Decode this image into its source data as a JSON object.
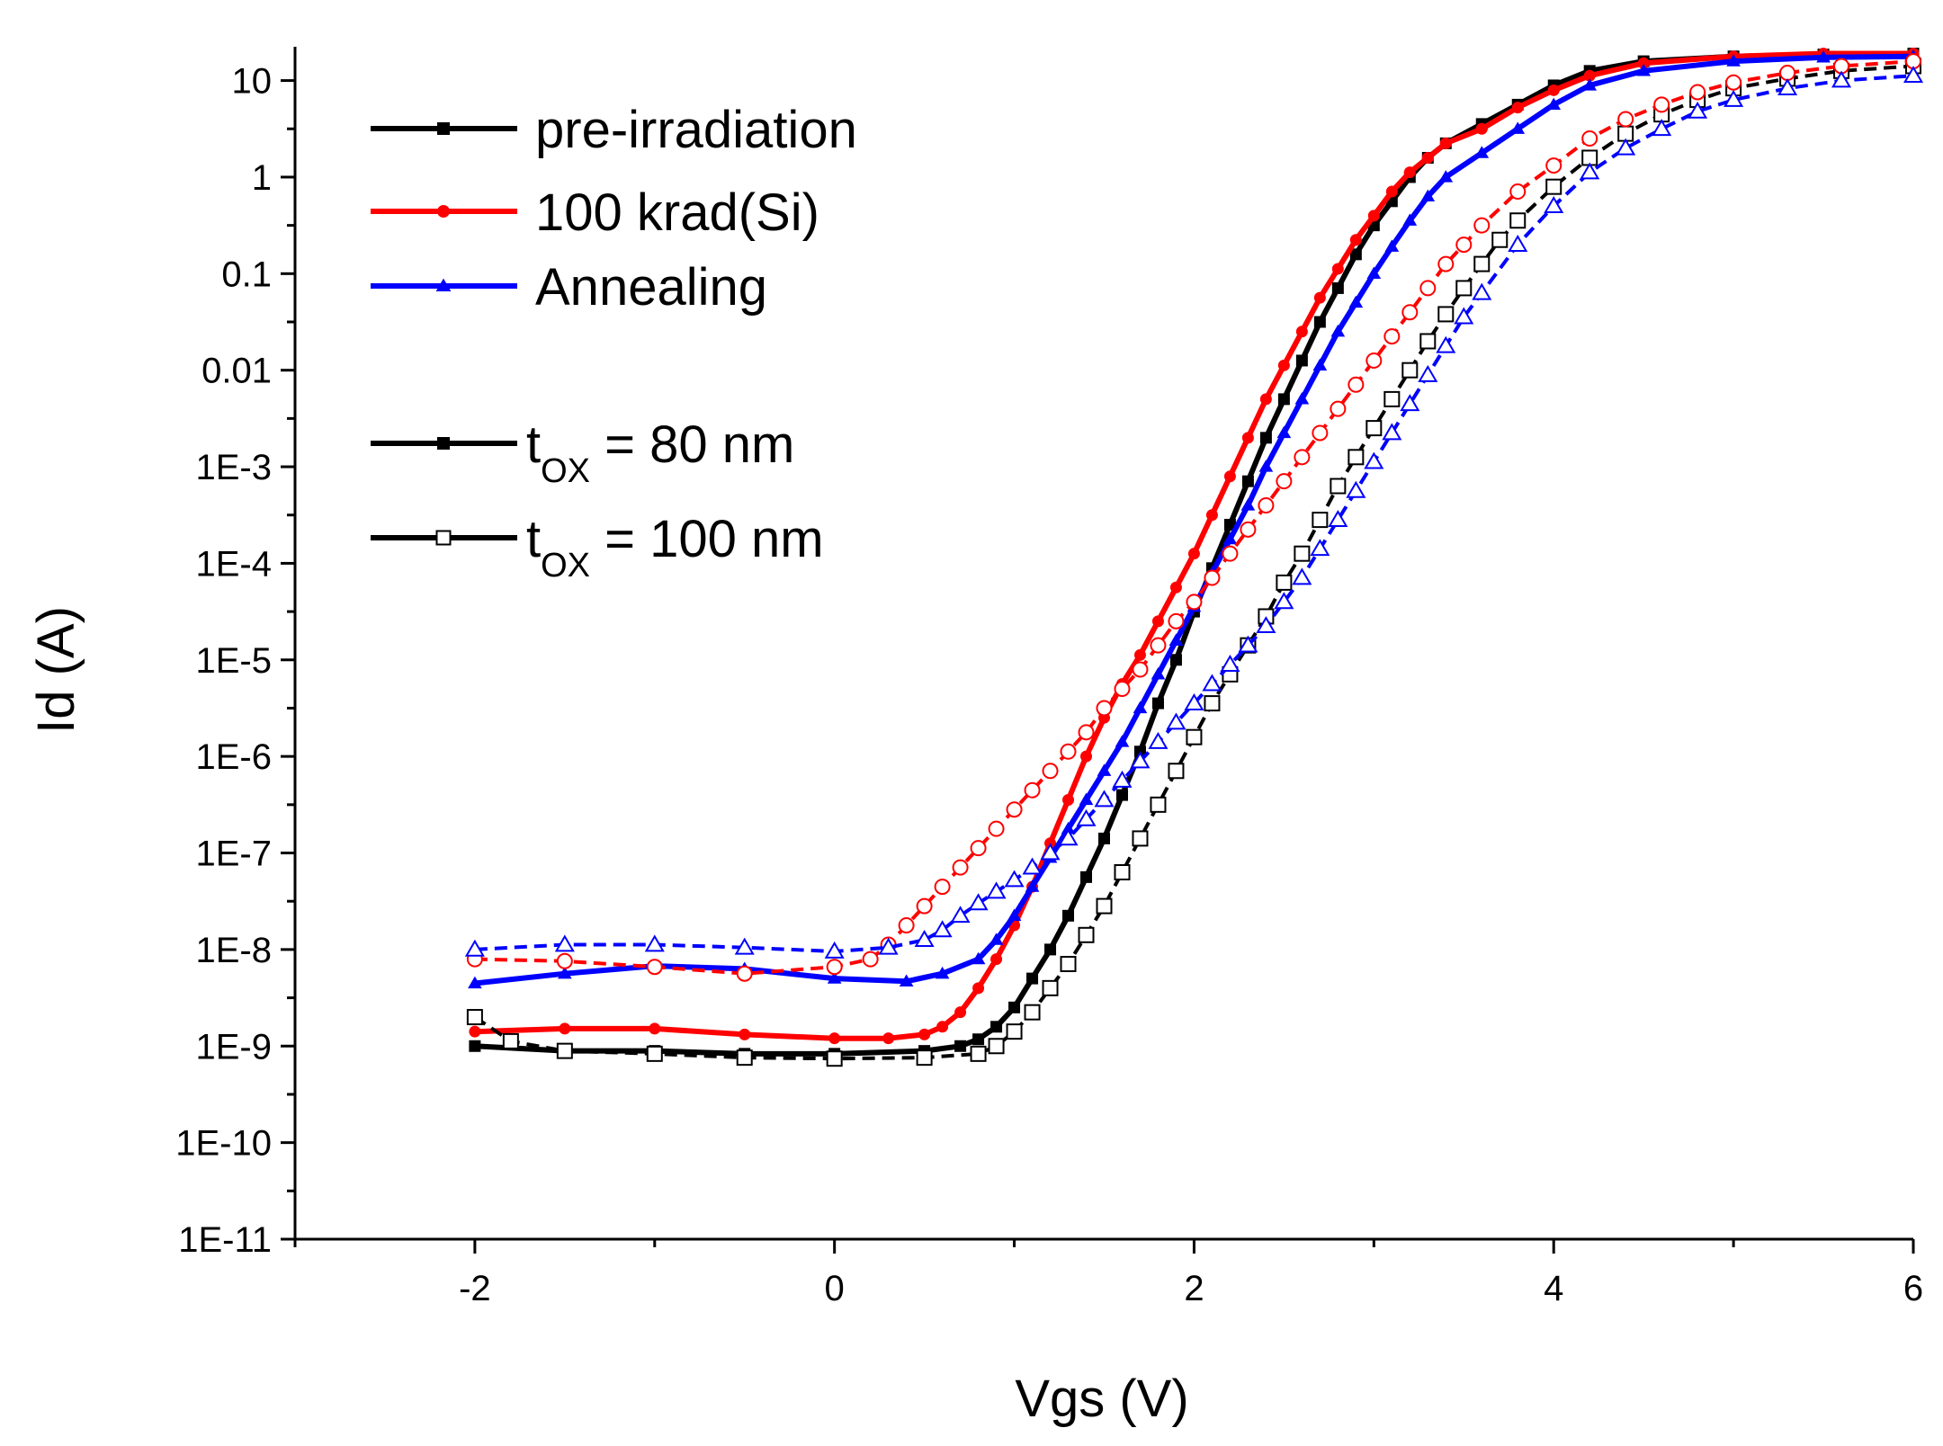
{
  "chart_data": {
    "type": "line",
    "title": "",
    "xlabel": "Vgs (V)",
    "ylabel": "Id (A)",
    "xlim": [
      -3,
      6
    ],
    "ylim_log10": [
      -11,
      1.35
    ],
    "y_scale": "log",
    "x_ticks": [
      {
        "value": -2,
        "label": "-2"
      },
      {
        "value": 0,
        "label": "0"
      },
      {
        "value": 2,
        "label": "2"
      },
      {
        "value": 4,
        "label": "4"
      },
      {
        "value": 6,
        "label": "6"
      }
    ],
    "y_ticks": [
      {
        "exp": 1,
        "label": "10"
      },
      {
        "exp": 0,
        "label": "1"
      },
      {
        "exp": -1,
        "label": "0.1"
      },
      {
        "exp": -2,
        "label": "0.01"
      },
      {
        "exp": -3,
        "label": "1E-3"
      },
      {
        "exp": -4,
        "label": "1E-4"
      },
      {
        "exp": -5,
        "label": "1E-5"
      },
      {
        "exp": -6,
        "label": "1E-6"
      },
      {
        "exp": -7,
        "label": "1E-7"
      },
      {
        "exp": -8,
        "label": "1E-8"
      },
      {
        "exp": -9,
        "label": "1E-9"
      },
      {
        "exp": -10,
        "label": "1E-10"
      },
      {
        "exp": -11,
        "label": "1E-11"
      }
    ],
    "legend": {
      "position": "top-left",
      "entries": [
        {
          "label": "pre-irradiation",
          "color": "#000000",
          "marker": "square",
          "filled": true
        },
        {
          "label": "100 krad(Si)",
          "color": "#ff0000",
          "marker": "circle",
          "filled": true
        },
        {
          "label": "Annealing",
          "color": "#0000ff",
          "marker": "triangle",
          "filled": true
        },
        {
          "label_prefix": "t",
          "label_sub": "OX",
          "label_suffix": " = 80 nm",
          "color": "#000000",
          "marker": "square",
          "filled": true
        },
        {
          "label_prefix": "t",
          "label_sub": "OX",
          "label_suffix": " = 100 nm",
          "color": "#000000",
          "marker": "square",
          "filled": false
        }
      ]
    },
    "series": [
      {
        "name": "pre-irradiation, tox = 80 nm",
        "color": "#000000",
        "marker": "square",
        "filled": true,
        "dashed": false,
        "points": [
          [
            -2,
            -9.0
          ],
          [
            -1.5,
            -9.05
          ],
          [
            -1,
            -9.05
          ],
          [
            -0.5,
            -9.08
          ],
          [
            0,
            -9.08
          ],
          [
            0.5,
            -9.05
          ],
          [
            0.7,
            -9.0
          ],
          [
            0.8,
            -8.93
          ],
          [
            0.9,
            -8.8
          ],
          [
            1.0,
            -8.6
          ],
          [
            1.1,
            -8.3
          ],
          [
            1.2,
            -8.0
          ],
          [
            1.3,
            -7.65
          ],
          [
            1.4,
            -7.25
          ],
          [
            1.5,
            -6.85
          ],
          [
            1.6,
            -6.4
          ],
          [
            1.7,
            -5.95
          ],
          [
            1.8,
            -5.45
          ],
          [
            1.9,
            -5.0
          ],
          [
            2.0,
            -4.5
          ],
          [
            2.1,
            -4.05
          ],
          [
            2.2,
            -3.6
          ],
          [
            2.3,
            -3.15
          ],
          [
            2.4,
            -2.7
          ],
          [
            2.5,
            -2.3
          ],
          [
            2.6,
            -1.9
          ],
          [
            2.7,
            -1.5
          ],
          [
            2.8,
            -1.15
          ],
          [
            2.9,
            -0.8
          ],
          [
            3.0,
            -0.5
          ],
          [
            3.1,
            -0.25
          ],
          [
            3.2,
            0.0
          ],
          [
            3.3,
            0.2
          ],
          [
            3.4,
            0.35
          ],
          [
            3.6,
            0.55
          ],
          [
            3.8,
            0.75
          ],
          [
            4.0,
            0.95
          ],
          [
            4.2,
            1.1
          ],
          [
            4.5,
            1.2
          ],
          [
            5.0,
            1.25
          ],
          [
            5.5,
            1.27
          ],
          [
            6.0,
            1.28
          ]
        ]
      },
      {
        "name": "100 krad(Si), tox = 80 nm",
        "color": "#ff0000",
        "marker": "circle",
        "filled": true,
        "dashed": false,
        "points": [
          [
            -2,
            -8.85
          ],
          [
            -1.5,
            -8.82
          ],
          [
            -1,
            -8.82
          ],
          [
            -0.5,
            -8.88
          ],
          [
            0,
            -8.92
          ],
          [
            0.3,
            -8.92
          ],
          [
            0.5,
            -8.88
          ],
          [
            0.6,
            -8.8
          ],
          [
            0.7,
            -8.65
          ],
          [
            0.8,
            -8.4
          ],
          [
            0.9,
            -8.1
          ],
          [
            1.0,
            -7.75
          ],
          [
            1.1,
            -7.35
          ],
          [
            1.2,
            -6.9
          ],
          [
            1.3,
            -6.45
          ],
          [
            1.4,
            -6.0
          ],
          [
            1.5,
            -5.6
          ],
          [
            1.6,
            -5.25
          ],
          [
            1.7,
            -4.95
          ],
          [
            1.8,
            -4.6
          ],
          [
            1.9,
            -4.25
          ],
          [
            2.0,
            -3.9
          ],
          [
            2.1,
            -3.5
          ],
          [
            2.2,
            -3.1
          ],
          [
            2.3,
            -2.7
          ],
          [
            2.4,
            -2.3
          ],
          [
            2.5,
            -1.95
          ],
          [
            2.6,
            -1.6
          ],
          [
            2.7,
            -1.25
          ],
          [
            2.8,
            -0.95
          ],
          [
            2.9,
            -0.65
          ],
          [
            3.0,
            -0.4
          ],
          [
            3.1,
            -0.15
          ],
          [
            3.2,
            0.05
          ],
          [
            3.3,
            0.2
          ],
          [
            3.4,
            0.35
          ],
          [
            3.6,
            0.5
          ],
          [
            3.8,
            0.72
          ],
          [
            4.0,
            0.9
          ],
          [
            4.2,
            1.05
          ],
          [
            4.5,
            1.18
          ],
          [
            5.0,
            1.25
          ],
          [
            5.5,
            1.28
          ],
          [
            6.0,
            1.28
          ]
        ]
      },
      {
        "name": "Annealing, tox = 80 nm",
        "color": "#0000ff",
        "marker": "triangle",
        "filled": true,
        "dashed": false,
        "points": [
          [
            -2,
            -8.35
          ],
          [
            -1.5,
            -8.25
          ],
          [
            -1,
            -8.17
          ],
          [
            -0.5,
            -8.2
          ],
          [
            0,
            -8.3
          ],
          [
            0.4,
            -8.33
          ],
          [
            0.6,
            -8.25
          ],
          [
            0.8,
            -8.1
          ],
          [
            0.9,
            -7.9
          ],
          [
            1.0,
            -7.65
          ],
          [
            1.1,
            -7.35
          ],
          [
            1.2,
            -7.05
          ],
          [
            1.3,
            -6.75
          ],
          [
            1.4,
            -6.45
          ],
          [
            1.5,
            -6.15
          ],
          [
            1.6,
            -5.85
          ],
          [
            1.7,
            -5.5
          ],
          [
            1.8,
            -5.15
          ],
          [
            1.9,
            -4.8
          ],
          [
            2.0,
            -4.45
          ],
          [
            2.1,
            -4.1
          ],
          [
            2.2,
            -3.75
          ],
          [
            2.3,
            -3.4
          ],
          [
            2.4,
            -3.0
          ],
          [
            2.5,
            -2.65
          ],
          [
            2.6,
            -2.3
          ],
          [
            2.7,
            -1.95
          ],
          [
            2.8,
            -1.6
          ],
          [
            2.9,
            -1.3
          ],
          [
            3.0,
            -1.0
          ],
          [
            3.1,
            -0.72
          ],
          [
            3.2,
            -0.45
          ],
          [
            3.3,
            -0.2
          ],
          [
            3.4,
            0.0
          ],
          [
            3.6,
            0.25
          ],
          [
            3.8,
            0.5
          ],
          [
            4.0,
            0.75
          ],
          [
            4.2,
            0.95
          ],
          [
            4.5,
            1.1
          ],
          [
            5.0,
            1.2
          ],
          [
            5.5,
            1.24
          ],
          [
            6.0,
            1.25
          ]
        ]
      },
      {
        "name": "pre-irradiation, tox = 100 nm",
        "color": "#000000",
        "marker": "square",
        "filled": false,
        "dashed": true,
        "points": [
          [
            -2,
            -8.7
          ],
          [
            -1.8,
            -8.95
          ],
          [
            -1.5,
            -9.05
          ],
          [
            -1,
            -9.08
          ],
          [
            -0.5,
            -9.12
          ],
          [
            0,
            -9.13
          ],
          [
            0.5,
            -9.12
          ],
          [
            0.8,
            -9.08
          ],
          [
            0.9,
            -9.0
          ],
          [
            1.0,
            -8.85
          ],
          [
            1.1,
            -8.65
          ],
          [
            1.2,
            -8.4
          ],
          [
            1.3,
            -8.15
          ],
          [
            1.4,
            -7.85
          ],
          [
            1.5,
            -7.55
          ],
          [
            1.6,
            -7.2
          ],
          [
            1.7,
            -6.85
          ],
          [
            1.8,
            -6.5
          ],
          [
            1.9,
            -6.15
          ],
          [
            2.0,
            -5.8
          ],
          [
            2.1,
            -5.45
          ],
          [
            2.2,
            -5.15
          ],
          [
            2.3,
            -4.85
          ],
          [
            2.4,
            -4.55
          ],
          [
            2.5,
            -4.2
          ],
          [
            2.6,
            -3.9
          ],
          [
            2.7,
            -3.55
          ],
          [
            2.8,
            -3.2
          ],
          [
            2.9,
            -2.9
          ],
          [
            3.0,
            -2.6
          ],
          [
            3.1,
            -2.3
          ],
          [
            3.2,
            -2.0
          ],
          [
            3.3,
            -1.7
          ],
          [
            3.4,
            -1.42
          ],
          [
            3.5,
            -1.15
          ],
          [
            3.6,
            -0.9
          ],
          [
            3.7,
            -0.65
          ],
          [
            3.8,
            -0.45
          ],
          [
            4.0,
            -0.1
          ],
          [
            4.2,
            0.2
          ],
          [
            4.4,
            0.45
          ],
          [
            4.6,
            0.65
          ],
          [
            4.8,
            0.8
          ],
          [
            5.0,
            0.92
          ],
          [
            5.3,
            1.02
          ],
          [
            5.6,
            1.1
          ],
          [
            6.0,
            1.15
          ]
        ]
      },
      {
        "name": "100 krad(Si), tox = 100 nm",
        "color": "#ff0000",
        "marker": "circle",
        "filled": false,
        "dashed": true,
        "points": [
          [
            -2,
            -8.1
          ],
          [
            -1.5,
            -8.12
          ],
          [
            -1,
            -8.18
          ],
          [
            -0.5,
            -8.25
          ],
          [
            0,
            -8.18
          ],
          [
            0.2,
            -8.1
          ],
          [
            0.3,
            -7.95
          ],
          [
            0.4,
            -7.75
          ],
          [
            0.5,
            -7.55
          ],
          [
            0.6,
            -7.35
          ],
          [
            0.7,
            -7.15
          ],
          [
            0.8,
            -6.95
          ],
          [
            0.9,
            -6.75
          ],
          [
            1.0,
            -6.55
          ],
          [
            1.1,
            -6.35
          ],
          [
            1.2,
            -6.15
          ],
          [
            1.3,
            -5.95
          ],
          [
            1.4,
            -5.75
          ],
          [
            1.5,
            -5.5
          ],
          [
            1.6,
            -5.3
          ],
          [
            1.7,
            -5.1
          ],
          [
            1.8,
            -4.85
          ],
          [
            1.9,
            -4.6
          ],
          [
            2.0,
            -4.4
          ],
          [
            2.1,
            -4.15
          ],
          [
            2.2,
            -3.9
          ],
          [
            2.3,
            -3.65
          ],
          [
            2.4,
            -3.4
          ],
          [
            2.5,
            -3.15
          ],
          [
            2.6,
            -2.9
          ],
          [
            2.7,
            -2.65
          ],
          [
            2.8,
            -2.4
          ],
          [
            2.9,
            -2.15
          ],
          [
            3.0,
            -1.9
          ],
          [
            3.1,
            -1.65
          ],
          [
            3.2,
            -1.4
          ],
          [
            3.3,
            -1.15
          ],
          [
            3.4,
            -0.9
          ],
          [
            3.5,
            -0.7
          ],
          [
            3.6,
            -0.5
          ],
          [
            3.8,
            -0.15
          ],
          [
            4.0,
            0.12
          ],
          [
            4.2,
            0.4
          ],
          [
            4.4,
            0.6
          ],
          [
            4.6,
            0.75
          ],
          [
            4.8,
            0.88
          ],
          [
            5.0,
            0.98
          ],
          [
            5.3,
            1.08
          ],
          [
            5.6,
            1.15
          ],
          [
            6.0,
            1.2
          ]
        ]
      },
      {
        "name": "Annealing, tox = 100 nm",
        "color": "#0000ff",
        "marker": "triangle",
        "filled": false,
        "dashed": true,
        "points": [
          [
            -2,
            -8.0
          ],
          [
            -1.5,
            -7.95
          ],
          [
            -1,
            -7.95
          ],
          [
            -0.5,
            -7.98
          ],
          [
            0,
            -8.02
          ],
          [
            0.3,
            -7.98
          ],
          [
            0.5,
            -7.9
          ],
          [
            0.6,
            -7.8
          ],
          [
            0.7,
            -7.65
          ],
          [
            0.8,
            -7.52
          ],
          [
            0.9,
            -7.4
          ],
          [
            1.0,
            -7.28
          ],
          [
            1.1,
            -7.15
          ],
          [
            1.2,
            -7.0
          ],
          [
            1.3,
            -6.85
          ],
          [
            1.4,
            -6.65
          ],
          [
            1.5,
            -6.45
          ],
          [
            1.6,
            -6.25
          ],
          [
            1.7,
            -6.05
          ],
          [
            1.8,
            -5.85
          ],
          [
            1.9,
            -5.65
          ],
          [
            2.0,
            -5.45
          ],
          [
            2.1,
            -5.25
          ],
          [
            2.2,
            -5.05
          ],
          [
            2.3,
            -4.85
          ],
          [
            2.4,
            -4.65
          ],
          [
            2.5,
            -4.4
          ],
          [
            2.6,
            -4.15
          ],
          [
            2.7,
            -3.85
          ],
          [
            2.8,
            -3.55
          ],
          [
            2.9,
            -3.25
          ],
          [
            3.0,
            -2.95
          ],
          [
            3.1,
            -2.65
          ],
          [
            3.2,
            -2.35
          ],
          [
            3.3,
            -2.05
          ],
          [
            3.4,
            -1.75
          ],
          [
            3.5,
            -1.45
          ],
          [
            3.6,
            -1.2
          ],
          [
            3.8,
            -0.7
          ],
          [
            4.0,
            -0.3
          ],
          [
            4.2,
            0.05
          ],
          [
            4.4,
            0.3
          ],
          [
            4.6,
            0.5
          ],
          [
            4.8,
            0.68
          ],
          [
            5.0,
            0.8
          ],
          [
            5.3,
            0.92
          ],
          [
            5.6,
            1.0
          ],
          [
            6.0,
            1.05
          ]
        ]
      }
    ]
  }
}
